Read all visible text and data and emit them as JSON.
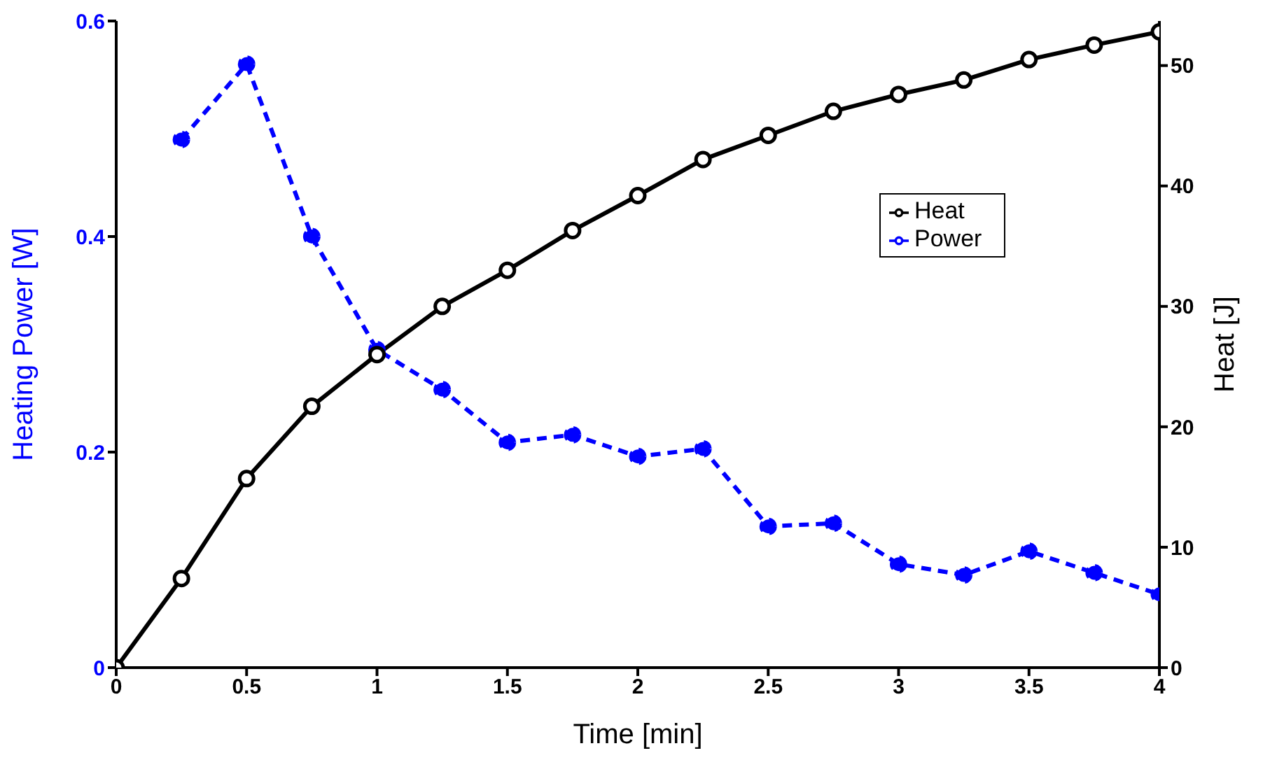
{
  "chart_data": {
    "type": "line",
    "xlabel": "Time [min]",
    "ylabel": "Heating Power [W]",
    "y2label": "Heat [J]",
    "x": [
      0,
      0.25,
      0.5,
      0.75,
      1,
      1.25,
      1.5,
      1.75,
      2,
      2.25,
      2.5,
      2.75,
      3,
      3.25,
      3.5,
      3.75,
      4
    ],
    "series": [
      {
        "name": "Heat",
        "color": "#000000",
        "axis": "y2",
        "line_style": "solid",
        "values": [
          0,
          7.4,
          15.7,
          21.7,
          26.0,
          30.0,
          33.0,
          36.3,
          39.2,
          42.2,
          44.2,
          46.2,
          47.6,
          48.8,
          50.5,
          51.7,
          52.8
        ]
      },
      {
        "name": "Power",
        "color": "#0000ff",
        "axis": "y",
        "line_style": "dashed",
        "values": [
          null,
          0.49,
          0.56,
          0.4,
          0.295,
          0.258,
          0.209,
          0.216,
          0.196,
          0.203,
          0.131,
          0.134,
          0.096,
          0.086,
          0.108,
          0.088,
          0.068
        ]
      }
    ],
    "xlim": [
      0,
      4
    ],
    "xticks": [
      0,
      0.5,
      1,
      1.5,
      2,
      2.5,
      3,
      3.5,
      4
    ],
    "ylim": [
      0,
      0.6
    ],
    "yticks": [
      0,
      0.2,
      0.4,
      0.6
    ],
    "y2lim": [
      0,
      53.7
    ],
    "y2ticks": [
      0,
      10,
      20,
      30,
      40,
      50
    ],
    "marker": "circle",
    "grid": false,
    "legend": "top right"
  }
}
